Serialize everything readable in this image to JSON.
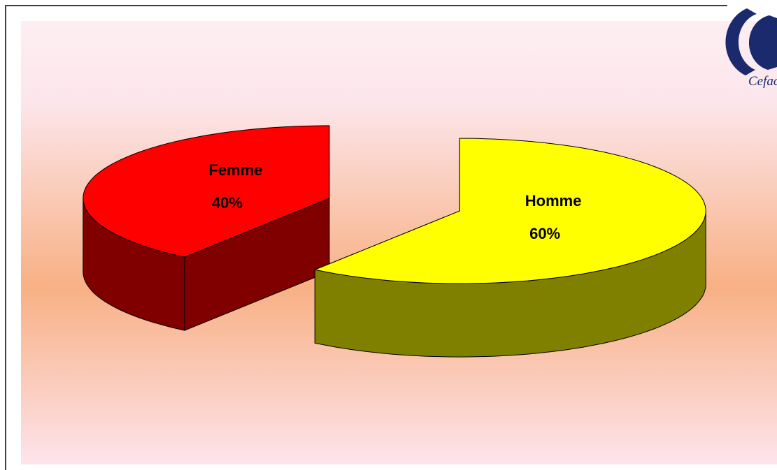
{
  "chart_data": {
    "type": "pie3d",
    "categories": [
      "Femme",
      "Homme"
    ],
    "values": [
      40,
      60
    ],
    "value_labels": [
      "40%",
      "60%"
    ],
    "colors": [
      "#ff0000",
      "#ffff00"
    ],
    "side_colors": [
      "#800000",
      "#808000"
    ]
  },
  "logo": {
    "text": "Cefac"
  }
}
